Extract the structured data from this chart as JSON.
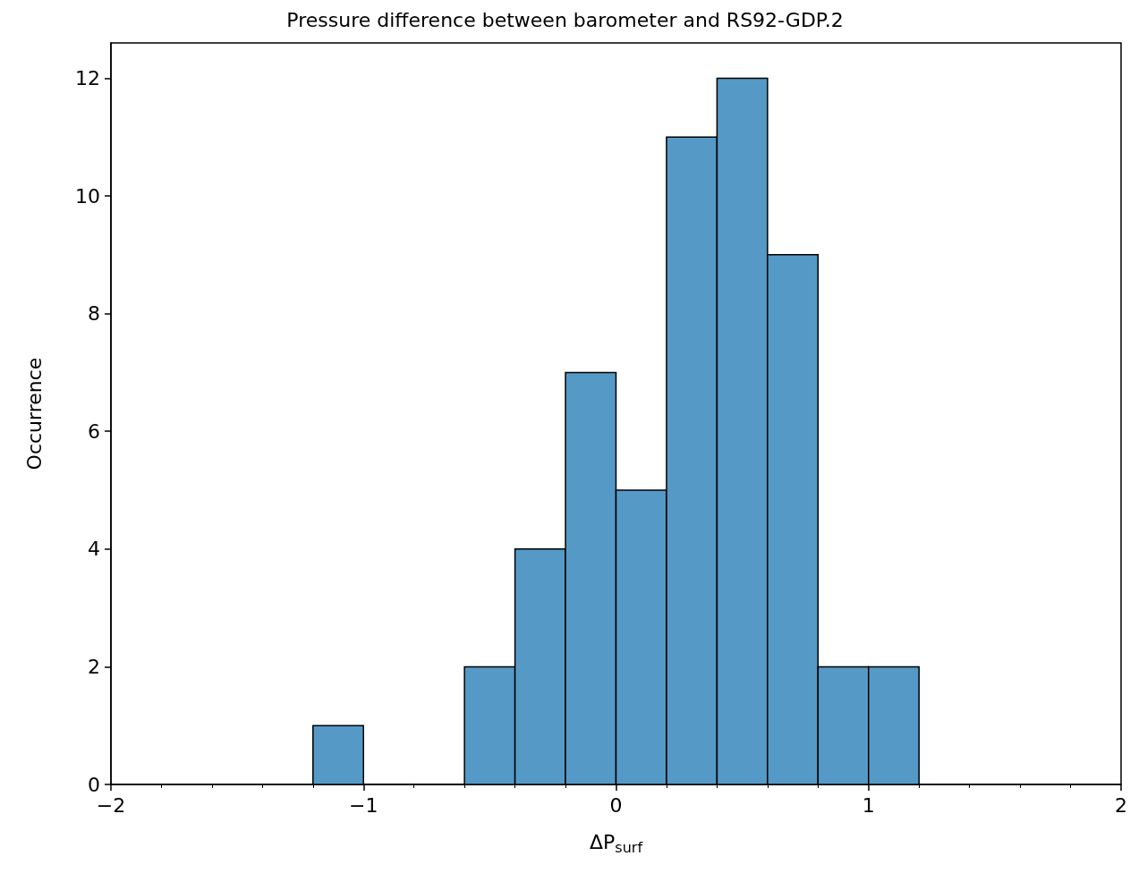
{
  "chart_data": {
    "type": "histogram",
    "title": "Pressure difference between barometer and RS92-GDP.2",
    "xlabel": "ΔP$_{surf}$",
    "ylabel": "Occurrence",
    "bins": [
      -1.2,
      -1.0,
      -0.8,
      -0.6,
      -0.4,
      -0.2,
      0,
      0.2,
      0.4,
      0.6,
      0.8,
      1.0,
      1.2
    ],
    "values": [
      1,
      0,
      0,
      2,
      4,
      7,
      5,
      11,
      12,
      9,
      2,
      2
    ],
    "color": "#5599c7",
    "xlim": [
      -2,
      2
    ],
    "xticks": [
      {
        "value": -2,
        "label": "−2"
      },
      {
        "value": -1,
        "label": "−1"
      },
      0,
      1,
      2
    ],
    "ylim": [
      0,
      12.6
    ],
    "yticks": [
      0,
      2,
      4,
      6,
      8,
      10,
      12
    ],
    "grid": false,
    "legend": false
  }
}
